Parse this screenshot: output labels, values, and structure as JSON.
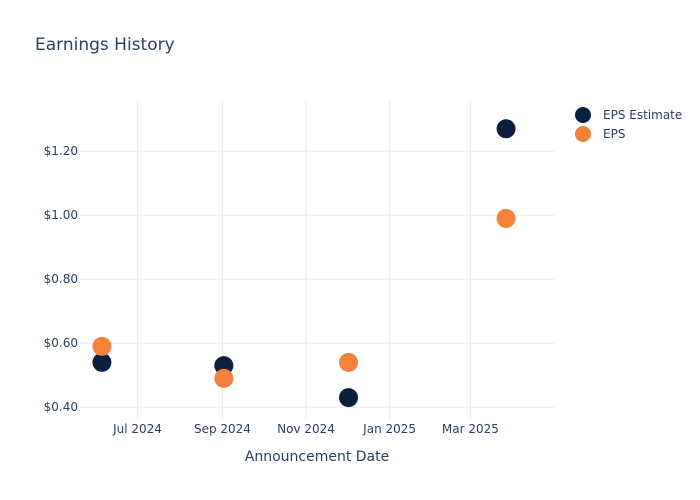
{
  "chart_data": {
    "type": "scatter",
    "title": "Earnings History",
    "xlabel": "Announcement Date",
    "ylabel": "",
    "x_ticks": [
      {
        "date": "2024-07-01",
        "label": "Jul 2024"
      },
      {
        "date": "2024-09-01",
        "label": "Sep 2024"
      },
      {
        "date": "2024-11-01",
        "label": "Nov 2024"
      },
      {
        "date": "2025-01-01",
        "label": "Jan 2025"
      },
      {
        "date": "2025-03-01",
        "label": "Mar 2025"
      }
    ],
    "y_ticks": [
      {
        "value": 0.4,
        "label": "$0.40"
      },
      {
        "value": 0.6,
        "label": "$0.60"
      },
      {
        "value": 0.8,
        "label": "$0.80"
      },
      {
        "value": 1.0,
        "label": "$1.00"
      },
      {
        "value": 1.2,
        "label": "$1.20"
      }
    ],
    "xlim": [
      "2024-05-20",
      "2025-05-01"
    ],
    "ylim": [
      0.36,
      1.36
    ],
    "grid": true,
    "legend_position": "top-right",
    "series": [
      {
        "name": "EPS Estimate",
        "color": "#0b1f3f",
        "points": [
          {
            "x": "2024-06-05",
            "y": 0.54
          },
          {
            "x": "2024-09-02",
            "y": 0.53
          },
          {
            "x": "2024-12-02",
            "y": 0.43
          },
          {
            "x": "2025-03-27",
            "y": 1.27
          }
        ]
      },
      {
        "name": "EPS",
        "color": "#f5813a",
        "points": [
          {
            "x": "2024-06-05",
            "y": 0.59
          },
          {
            "x": "2024-09-02",
            "y": 0.49
          },
          {
            "x": "2024-12-02",
            "y": 0.54
          },
          {
            "x": "2025-03-27",
            "y": 0.99
          }
        ]
      }
    ]
  }
}
